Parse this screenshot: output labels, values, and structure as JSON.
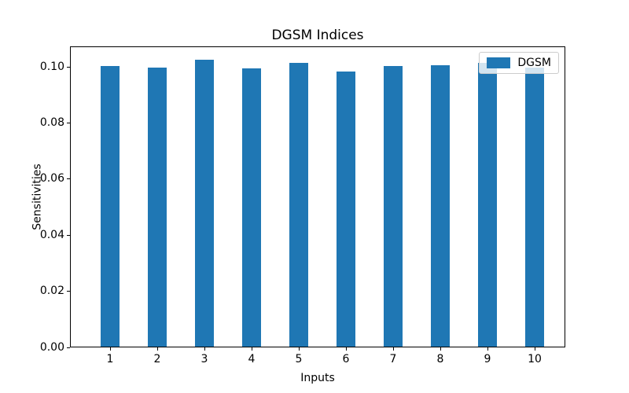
{
  "window": {
    "background": "#ffffff"
  },
  "chart_data": {
    "type": "bar",
    "title": "DGSM Indices",
    "xlabel": "Inputs",
    "ylabel": "Sensitivities",
    "categories": [
      "1",
      "2",
      "3",
      "4",
      "5",
      "6",
      "7",
      "8",
      "9",
      "10"
    ],
    "series": [
      {
        "name": "DGSM",
        "values": [
          0.1,
          0.0994,
          0.1022,
          0.0992,
          0.101,
          0.098,
          0.1,
          0.1003,
          0.1011,
          0.0994
        ]
      }
    ],
    "bar_color": "#1f77b4",
    "yticks": [
      0.0,
      0.02,
      0.04,
      0.06,
      0.08,
      0.1
    ],
    "ytick_labels": [
      "0.00",
      "0.02",
      "0.04",
      "0.06",
      "0.08",
      "0.10"
    ],
    "ylim": [
      0,
      0.1073
    ],
    "grid": false,
    "legend": {
      "position": "upper right",
      "entries": [
        "DGSM"
      ]
    }
  }
}
